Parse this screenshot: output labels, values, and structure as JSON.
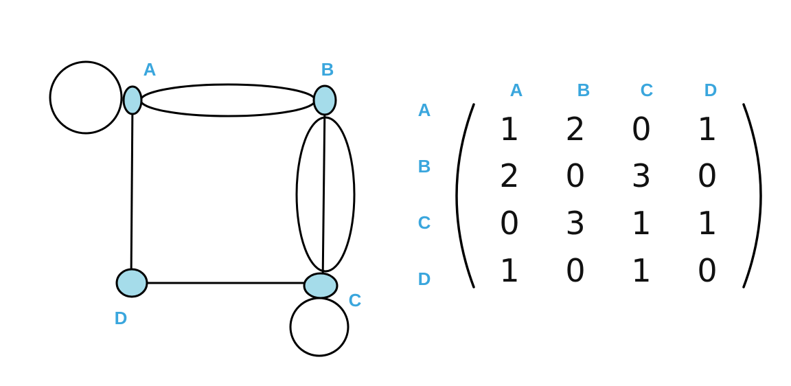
{
  "colors": {
    "label": "#3aa6dd",
    "vertex_fill": "#a5dcea",
    "stroke": "#000000"
  },
  "graph": {
    "nodes": {
      "A": "A",
      "B": "B",
      "C": "C",
      "D": "D"
    }
  },
  "matrix": {
    "col_labels": [
      "A",
      "B",
      "C",
      "D"
    ],
    "row_labels": [
      "A",
      "B",
      "C",
      "D"
    ],
    "rows": [
      [
        "1",
        "2",
        "0",
        "1"
      ],
      [
        "2",
        "0",
        "3",
        "0"
      ],
      [
        "0",
        "3",
        "1",
        "1"
      ],
      [
        "1",
        "0",
        "1",
        "0"
      ]
    ]
  }
}
